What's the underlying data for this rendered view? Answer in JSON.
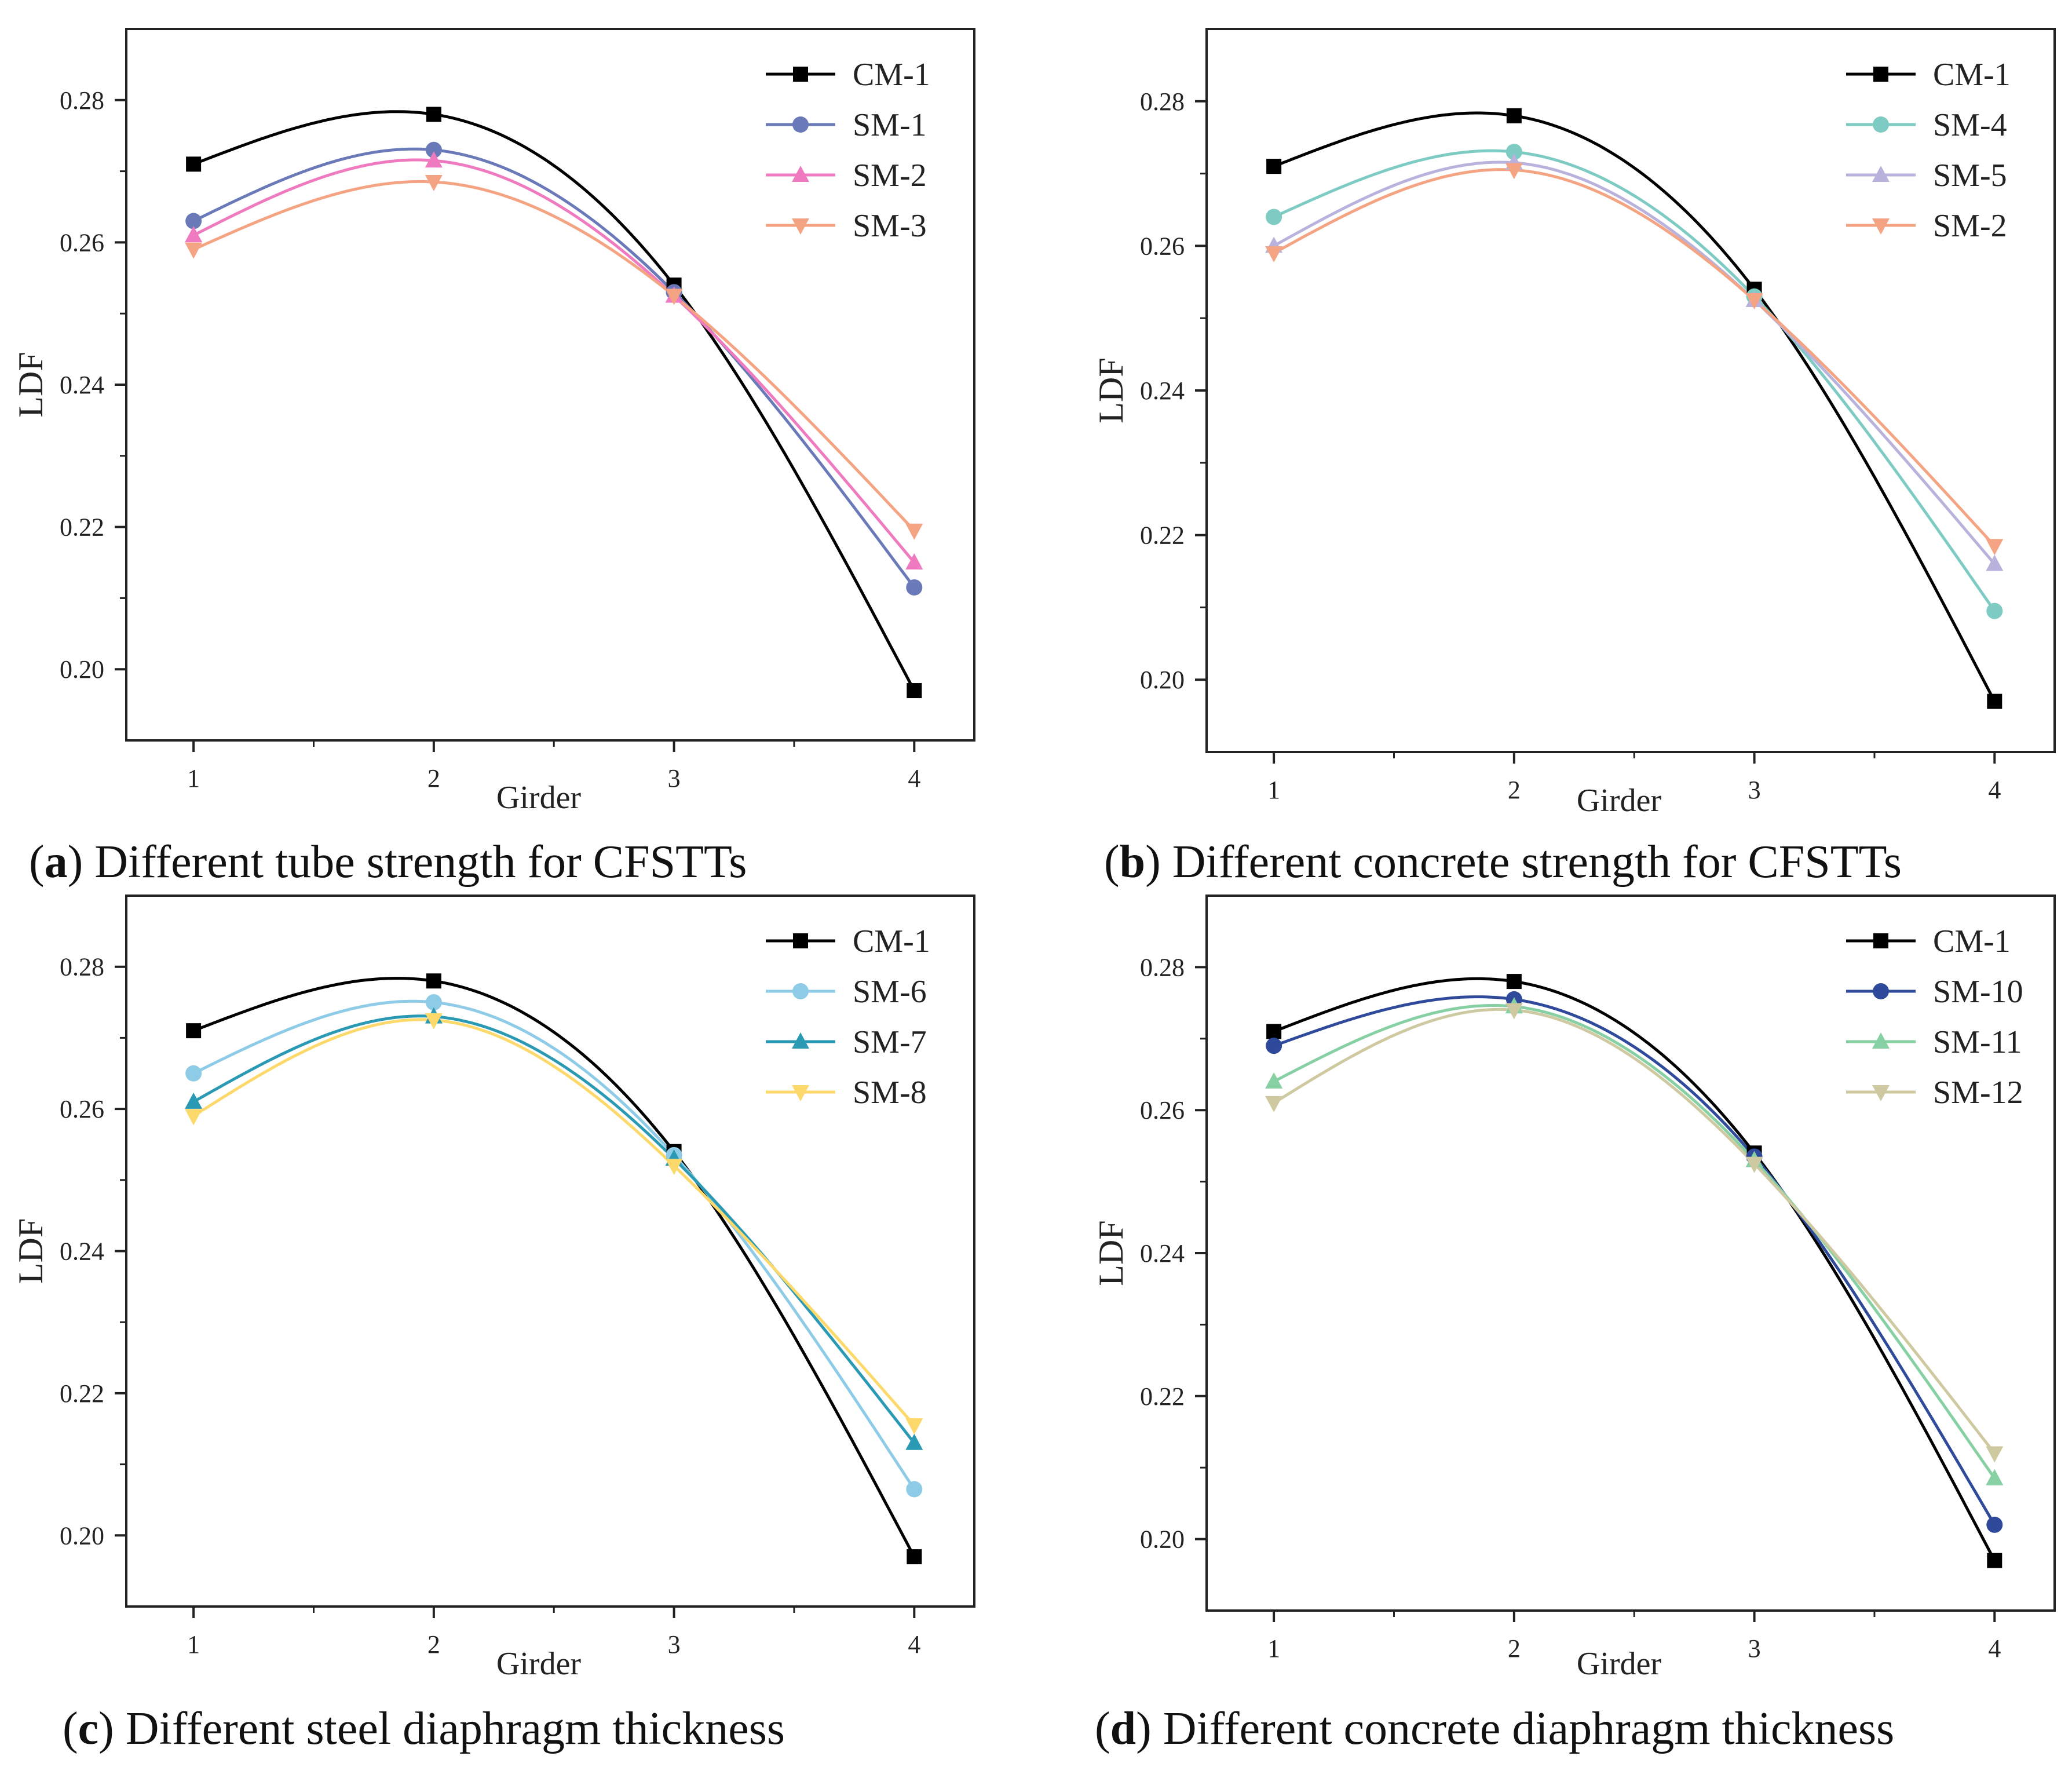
{
  "captions": [
    {
      "letter": "a",
      "text": " Different tube strength for CFSTTs"
    },
    {
      "letter": "b",
      "text": " Different concrete strength for CFSTTs"
    },
    {
      "letter": "c",
      "text": " Different steel diaphragm thickness"
    },
    {
      "letter": "d",
      "text": " Different concrete diaphragm thickness"
    }
  ],
  "chart_data": [
    {
      "type": "line",
      "title": "",
      "xlabel": "Girder",
      "ylabel": "LDF",
      "x": [
        1,
        2,
        3,
        4
      ],
      "xlim": [
        0.72,
        4.25
      ],
      "ylim": [
        0.19,
        0.29
      ],
      "yticks": [
        0.2,
        0.22,
        0.24,
        0.26,
        0.28
      ],
      "ytick_labels": [
        "0.20",
        "0.22",
        "0.24",
        "0.26",
        "0.28"
      ],
      "xtick_labels": [
        "1",
        "2",
        "3",
        "4"
      ],
      "legend_position": "top-right",
      "series": [
        {
          "name": "CM-1",
          "values": [
            0.271,
            0.278,
            0.254,
            0.197
          ],
          "color": "#000000",
          "marker": "square"
        },
        {
          "name": "SM-1",
          "values": [
            0.263,
            0.273,
            0.253,
            0.2115
          ],
          "color": "#6a7ab8",
          "marker": "circle"
        },
        {
          "name": "SM-2",
          "values": [
            0.261,
            0.2715,
            0.2525,
            0.215
          ],
          "color": "#f07ac0",
          "marker": "triangle-up"
        },
        {
          "name": "SM-3",
          "values": [
            0.259,
            0.2685,
            0.2525,
            0.2195
          ],
          "color": "#f4a482",
          "marker": "triangle-down"
        }
      ]
    },
    {
      "type": "line",
      "title": "",
      "xlabel": "Girder",
      "ylabel": "LDF",
      "x": [
        1,
        2,
        3,
        4
      ],
      "xlim": [
        0.72,
        4.25
      ],
      "ylim": [
        0.19,
        0.29
      ],
      "yticks": [
        0.2,
        0.22,
        0.24,
        0.26,
        0.28
      ],
      "ytick_labels": [
        "0.20",
        "0.22",
        "0.24",
        "0.26",
        "0.28"
      ],
      "xtick_labels": [
        "1",
        "2",
        "3",
        "4"
      ],
      "legend_position": "top-right",
      "series": [
        {
          "name": "CM-1",
          "values": [
            0.271,
            0.278,
            0.254,
            0.197
          ],
          "color": "#000000",
          "marker": "square"
        },
        {
          "name": "SM-4",
          "values": [
            0.264,
            0.273,
            0.253,
            0.2095
          ],
          "color": "#7ecbc4",
          "marker": "circle"
        },
        {
          "name": "SM-5",
          "values": [
            0.26,
            0.2715,
            0.2525,
            0.216
          ],
          "color": "#b8b2dc",
          "marker": "triangle-up"
        },
        {
          "name": "SM-2",
          "values": [
            0.259,
            0.2705,
            0.2525,
            0.2185
          ],
          "color": "#f4a482",
          "marker": "triangle-down"
        }
      ]
    },
    {
      "type": "line",
      "title": "",
      "xlabel": "Girder",
      "ylabel": "LDF",
      "x": [
        1,
        2,
        3,
        4
      ],
      "xlim": [
        0.72,
        4.25
      ],
      "ylim": [
        0.19,
        0.29
      ],
      "yticks": [
        0.2,
        0.22,
        0.24,
        0.26,
        0.28
      ],
      "ytick_labels": [
        "0.20",
        "0.22",
        "0.24",
        "0.26",
        "0.28"
      ],
      "xtick_labels": [
        "1",
        "2",
        "3",
        "4"
      ],
      "legend_position": "top-right",
      "series": [
        {
          "name": "CM-1",
          "values": [
            0.271,
            0.278,
            0.254,
            0.197
          ],
          "color": "#000000",
          "marker": "square"
        },
        {
          "name": "SM-6",
          "values": [
            0.265,
            0.275,
            0.2535,
            0.2065
          ],
          "color": "#8ecbe6",
          "marker": "circle"
        },
        {
          "name": "SM-7",
          "values": [
            0.261,
            0.273,
            0.253,
            0.213
          ],
          "color": "#2a9ab4",
          "marker": "triangle-up"
        },
        {
          "name": "SM-8",
          "values": [
            0.259,
            0.2725,
            0.252,
            0.2155
          ],
          "color": "#fcd96a",
          "marker": "triangle-down"
        }
      ]
    },
    {
      "type": "line",
      "title": "",
      "xlabel": "Girder",
      "ylabel": "LDF",
      "x": [
        1,
        2,
        3,
        4
      ],
      "xlim": [
        0.72,
        4.25
      ],
      "ylim": [
        0.19,
        0.29
      ],
      "yticks": [
        0.2,
        0.22,
        0.24,
        0.26,
        0.28
      ],
      "ytick_labels": [
        "0.20",
        "0.22",
        "0.24",
        "0.26",
        "0.28"
      ],
      "xtick_labels": [
        "1",
        "2",
        "3",
        "4"
      ],
      "legend_position": "top-right",
      "series": [
        {
          "name": "CM-1",
          "values": [
            0.271,
            0.278,
            0.254,
            0.197
          ],
          "color": "#000000",
          "marker": "square"
        },
        {
          "name": "SM-10",
          "values": [
            0.269,
            0.2755,
            0.2535,
            0.202
          ],
          "color": "#2f4a9a",
          "marker": "circle"
        },
        {
          "name": "SM-11",
          "values": [
            0.264,
            0.2745,
            0.253,
            0.2085
          ],
          "color": "#86d0a4",
          "marker": "triangle-up"
        },
        {
          "name": "SM-12",
          "values": [
            0.261,
            0.274,
            0.2525,
            0.212
          ],
          "color": "#cfc9a2",
          "marker": "triangle-down"
        }
      ]
    }
  ]
}
